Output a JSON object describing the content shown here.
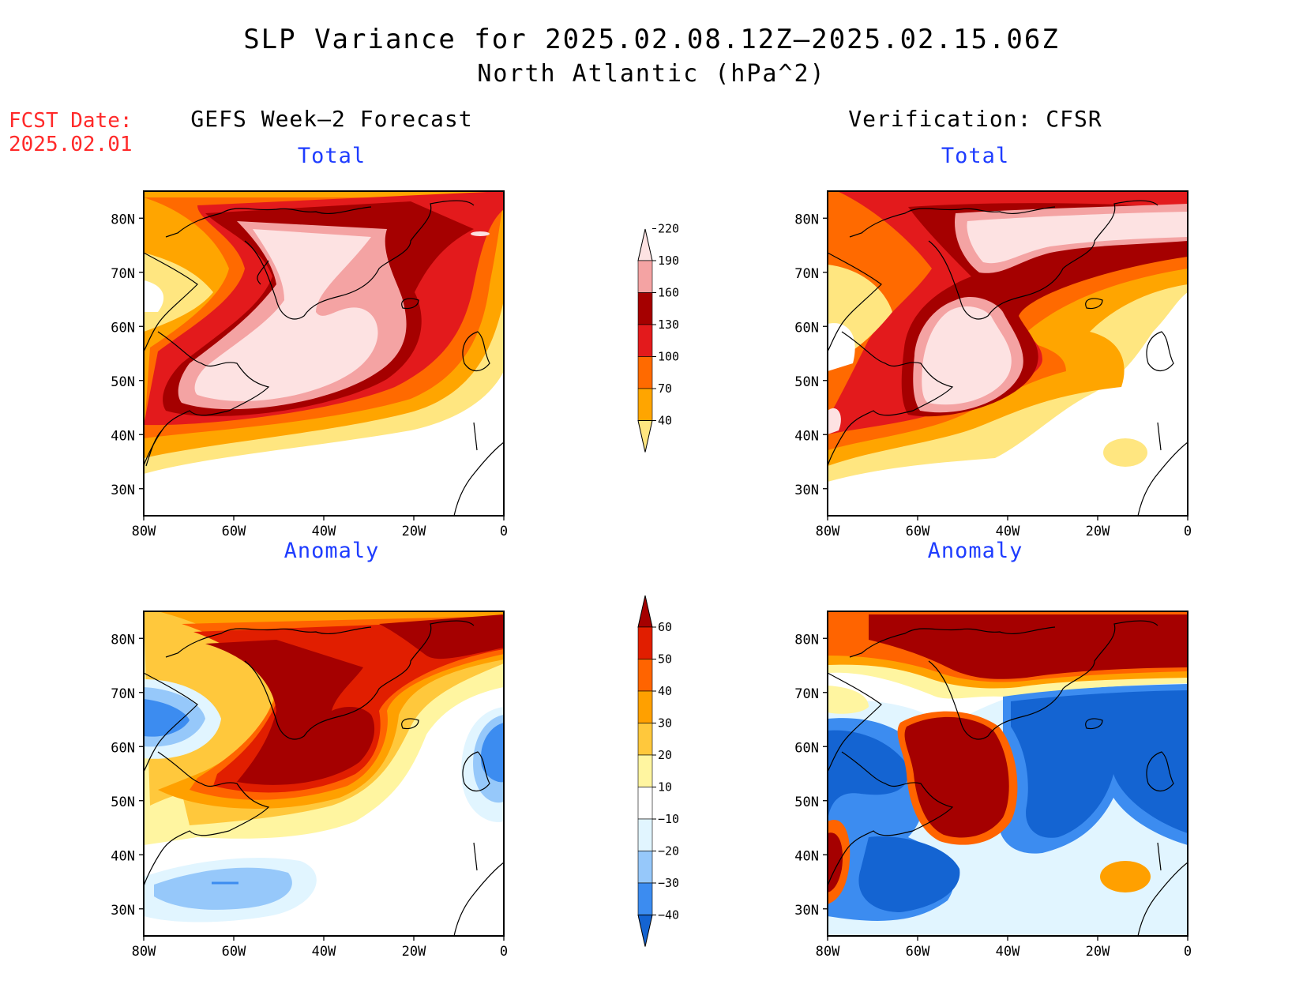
{
  "title": {
    "line1": "SLP Variance for 2025.02.08.12Z–2025.02.15.06Z",
    "line2": "North Atlantic (hPa^2)"
  },
  "fcst_date": {
    "label": "FCST Date:",
    "value": "2025.02.01"
  },
  "columns": {
    "left": "GEFS Week–2 Forecast",
    "right": "Verification: CFSR"
  },
  "panel_titles": {
    "total": "Total",
    "anomaly": "Anomaly"
  },
  "axes": {
    "lat_ticks": [
      "80N",
      "70N",
      "60N",
      "50N",
      "40N",
      "30N"
    ],
    "lon_ticks": [
      "80W",
      "60W",
      "40W",
      "20W",
      "0"
    ],
    "lat_range": [
      25,
      85
    ],
    "lon_range": [
      -80,
      0
    ]
  },
  "colorbars": {
    "total": {
      "levels": [
        "40",
        "70",
        "100",
        "130",
        "160",
        "190",
        "220"
      ],
      "colors": [
        "#ffe680",
        "#ffa500",
        "#ff6a00",
        "#e31a1c",
        "#a50000",
        "#f4a3a3",
        "#fde2e2"
      ]
    },
    "anomaly": {
      "levels": [
        "−40",
        "−30",
        "−20",
        "−10",
        "10",
        "20",
        "30",
        "40",
        "50",
        "60"
      ],
      "colors": [
        "#1464d2",
        "#3c8cf0",
        "#96c8fa",
        "#e1f5ff",
        "#ffffff",
        "#fff5a0",
        "#ffc83c",
        "#ffa000",
        "#ff6400",
        "#e11e00",
        "#a50000"
      ]
    }
  },
  "colors": {
    "title_color": "#000000",
    "subtitle_color": "#1e3cff",
    "fcst_color": "#ff2a2a"
  }
}
